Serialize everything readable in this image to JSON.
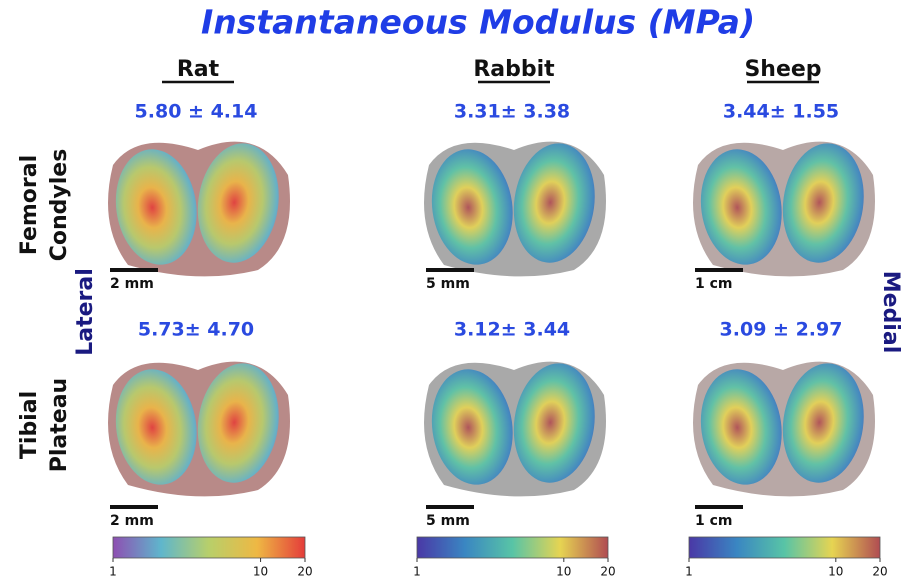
{
  "title": "Instantaneous Modulus (MPa)",
  "columns": [
    "Rat",
    "Rabbit",
    "Sheep"
  ],
  "rows": [
    [
      "Femoral",
      "Condyles"
    ],
    [
      "Tibial",
      "Plateau"
    ]
  ],
  "sides": [
    "Lateral",
    "Medial"
  ],
  "panels": [
    [
      {
        "value": "5.80 ± 4.14",
        "scale": "2 mm"
      },
      {
        "value": "3.31± 3.38",
        "scale": "5 mm"
      },
      {
        "value": "3.44± 1.55",
        "scale": "1 cm"
      }
    ],
    [
      {
        "value": "5.73± 4.70",
        "scale": "2 mm"
      },
      {
        "value": "3.12± 3.44",
        "scale": "5 mm"
      },
      {
        "value": "3.09 ± 2.97",
        "scale": "1 cm"
      }
    ]
  ],
  "colorbars": [
    {
      "lim": [
        1,
        20
      ],
      "ticks": [
        1,
        10,
        20
      ],
      "log": true,
      "colors": [
        "#8e4fb2",
        "#5fb6cc",
        "#b8cf6a",
        "#eeb844",
        "#e43c3a"
      ]
    },
    {
      "lim": [
        1,
        20
      ],
      "ticks": [
        1,
        10,
        20
      ],
      "log": true,
      "colors": [
        "#4a38a6",
        "#3a86c2",
        "#58c4a6",
        "#e6d452",
        "#b04c52"
      ]
    },
    {
      "lim": [
        1,
        20
      ],
      "ticks": [
        1,
        10,
        20
      ],
      "log": true,
      "colors": [
        "#4a38a6",
        "#3a86c2",
        "#58c4a6",
        "#e6d452",
        "#b04c52"
      ]
    }
  ]
}
